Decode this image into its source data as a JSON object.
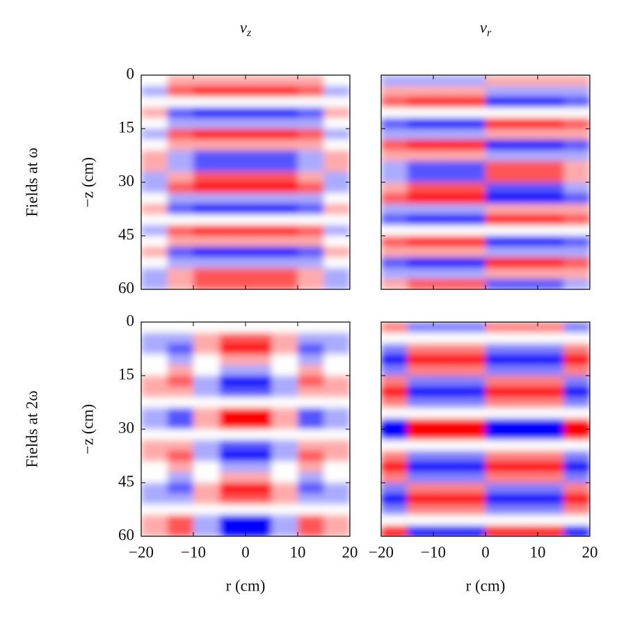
{
  "chart_data": [
    {
      "type": "heatmap",
      "title": {
        "text": "v",
        "subscript": "z"
      },
      "row_label": "Fields at ω",
      "ylabel": "−z (cm)",
      "xlim": [
        -20,
        20
      ],
      "ylim": [
        0,
        60
      ],
      "y_inverted": true,
      "xticks": [
        {
          "value": -20,
          "label": "−20"
        },
        {
          "value": -10,
          "label": "−10"
        },
        0,
        10,
        20
      ],
      "yticks": [
        0,
        15,
        30,
        45,
        60
      ],
      "xticklabels": false,
      "yticklabels": true,
      "xbins": [
        -20,
        -15,
        -10,
        -5,
        0,
        5,
        10,
        15,
        20
      ],
      "ybins": [
        0,
        3,
        6,
        9,
        12,
        15,
        18,
        21,
        24,
        27,
        30,
        33,
        36,
        39,
        42,
        45,
        48,
        51,
        54,
        57,
        60
      ],
      "z": [
        [
          0,
          1,
          1,
          1,
          1,
          1,
          1,
          0
        ],
        [
          -1,
          2,
          3,
          3,
          3,
          3,
          2,
          -1
        ],
        [
          0,
          0,
          0,
          0,
          0,
          0,
          0,
          0
        ],
        [
          1,
          -2,
          -3,
          -3,
          -3,
          -3,
          -2,
          1
        ],
        [
          0,
          -1,
          -1,
          -1,
          -1,
          -1,
          -1,
          0
        ],
        [
          -1,
          2,
          3,
          3,
          3,
          3,
          2,
          -1
        ],
        [
          0,
          1,
          1,
          1,
          1,
          1,
          1,
          0
        ],
        [
          1,
          -1,
          -2,
          -2,
          -2,
          -2,
          -1,
          1
        ],
        [
          1,
          -1,
          -2,
          -2,
          -2,
          -2,
          -1,
          1
        ],
        [
          -1,
          1,
          2,
          2,
          2,
          2,
          1,
          -1
        ],
        [
          -1,
          2,
          3,
          3,
          3,
          3,
          2,
          -1
        ],
        [
          0,
          -1,
          -1,
          -1,
          -1,
          -1,
          -1,
          0
        ],
        [
          1,
          -2,
          -3,
          -3,
          -3,
          -3,
          -2,
          1
        ],
        [
          0,
          0,
          0,
          0,
          0,
          0,
          0,
          0
        ],
        [
          -1,
          2,
          3,
          3,
          3,
          3,
          2,
          -1
        ],
        [
          0,
          1,
          1,
          1,
          1,
          1,
          1,
          0
        ],
        [
          1,
          -2,
          -3,
          -3,
          -3,
          -3,
          -2,
          1
        ],
        [
          0,
          -1,
          -1,
          -1,
          -1,
          -1,
          -1,
          0
        ],
        [
          -1,
          1,
          2,
          2,
          2,
          2,
          1,
          -1
        ],
        [
          -1,
          1,
          2,
          2,
          2,
          2,
          1,
          -1
        ]
      ]
    },
    {
      "type": "heatmap",
      "title": {
        "text": "v",
        "subscript": "r"
      },
      "xlim": [
        -20,
        20
      ],
      "ylim": [
        0,
        60
      ],
      "y_inverted": true,
      "xticks": [
        {
          "value": -20,
          "label": "−20"
        },
        {
          "value": -10,
          "label": "−10"
        },
        0,
        10,
        20
      ],
      "yticks": [
        0,
        15,
        30,
        45,
        60
      ],
      "xticklabels": false,
      "yticklabels": false,
      "xbins": [
        -20,
        -15,
        -10,
        -5,
        0,
        5,
        10,
        15,
        20
      ],
      "ybins": [
        0,
        3,
        6,
        9,
        12,
        15,
        18,
        21,
        24,
        27,
        30,
        33,
        36,
        39,
        42,
        45,
        48,
        51,
        54,
        57,
        60
      ],
      "z": [
        [
          -1,
          -1,
          -1,
          -1,
          1,
          1,
          1,
          1
        ],
        [
          1,
          1,
          1,
          1,
          -1,
          -1,
          -1,
          -1
        ],
        [
          2,
          3,
          3,
          3,
          -3,
          -3,
          -3,
          -2
        ],
        [
          0,
          0,
          0,
          0,
          0,
          0,
          0,
          0
        ],
        [
          -2,
          -3,
          -3,
          -3,
          3,
          3,
          3,
          2
        ],
        [
          -1,
          -1,
          -1,
          -1,
          1,
          1,
          1,
          1
        ],
        [
          2,
          3,
          3,
          3,
          -3,
          -3,
          -3,
          -2
        ],
        [
          1,
          1,
          1,
          1,
          -1,
          -1,
          -1,
          -1
        ],
        [
          -1,
          -2,
          -2,
          -2,
          2,
          2,
          2,
          1
        ],
        [
          -1,
          -2,
          -2,
          -2,
          2,
          2,
          2,
          1
        ],
        [
          1,
          2,
          2,
          2,
          -2,
          -2,
          -2,
          -1
        ],
        [
          2,
          3,
          3,
          3,
          -3,
          -3,
          -3,
          -2
        ],
        [
          -1,
          -1,
          -1,
          -1,
          1,
          1,
          1,
          1
        ],
        [
          -2,
          -3,
          -3,
          -3,
          3,
          3,
          3,
          2
        ],
        [
          0,
          0,
          0,
          0,
          0,
          0,
          0,
          0
        ],
        [
          2,
          3,
          3,
          3,
          -3,
          -3,
          -3,
          -2
        ],
        [
          1,
          1,
          1,
          1,
          -1,
          -1,
          -1,
          -1
        ],
        [
          -2,
          -3,
          -3,
          -3,
          3,
          3,
          3,
          2
        ],
        [
          -1,
          -1,
          -1,
          -1,
          1,
          1,
          1,
          1
        ],
        [
          1,
          2,
          2,
          2,
          -2,
          -2,
          -2,
          -1
        ]
      ]
    },
    {
      "type": "heatmap",
      "row_label": "Fields at 2ω",
      "ylabel": "−z (cm)",
      "xlabel": "r (cm)",
      "xlim": [
        -20,
        20
      ],
      "ylim": [
        0,
        60
      ],
      "y_inverted": true,
      "xticks": [
        {
          "value": -20,
          "label": "−20"
        },
        {
          "value": -10,
          "label": "−10"
        },
        0,
        10,
        20
      ],
      "yticks": [
        0,
        15,
        30,
        45,
        60
      ],
      "xticklabels": true,
      "yticklabels": true,
      "xbins": [
        -20,
        -15,
        -10,
        -5,
        0,
        5,
        10,
        15,
        20
      ],
      "ybins": [
        0,
        3,
        6,
        9,
        12,
        15,
        18,
        21,
        24,
        27,
        30,
        33,
        36,
        39,
        42,
        45,
        48,
        51,
        54,
        57,
        60
      ],
      "z": [
        [
          0,
          0,
          0,
          0,
          0,
          0,
          0,
          0
        ],
        [
          -1,
          -1,
          1,
          2,
          2,
          1,
          -1,
          -1
        ],
        [
          -1,
          -2,
          1,
          3,
          3,
          1,
          -2,
          -1
        ],
        [
          0,
          -1,
          0,
          1,
          1,
          0,
          -1,
          0
        ],
        [
          0,
          1,
          0,
          -1,
          -1,
          0,
          1,
          0
        ],
        [
          1,
          2,
          -1,
          -3,
          -3,
          -1,
          2,
          1
        ],
        [
          1,
          1,
          -1,
          -2,
          -2,
          -1,
          1,
          1
        ],
        [
          0,
          0,
          0,
          0,
          0,
          0,
          0,
          0
        ],
        [
          -1,
          -2,
          1,
          3,
          3,
          1,
          -2,
          -1
        ],
        [
          -1,
          -2,
          1,
          3,
          3,
          1,
          -2,
          -1
        ],
        [
          0,
          0,
          0,
          0,
          0,
          0,
          0,
          0
        ],
        [
          1,
          1,
          -1,
          -2,
          -2,
          -1,
          1,
          1
        ],
        [
          1,
          2,
          -1,
          -3,
          -3,
          -1,
          2,
          1
        ],
        [
          0,
          1,
          0,
          -1,
          -1,
          0,
          1,
          0
        ],
        [
          0,
          -1,
          0,
          1,
          1,
          0,
          -1,
          0
        ],
        [
          -1,
          -2,
          1,
          3,
          3,
          1,
          -2,
          -1
        ],
        [
          -1,
          -1,
          1,
          2,
          2,
          1,
          -1,
          -1
        ],
        [
          0,
          0,
          0,
          0,
          0,
          0,
          0,
          0
        ],
        [
          1,
          2,
          -1,
          -3,
          -3,
          -1,
          2,
          1
        ],
        [
          1,
          2,
          -1,
          -3,
          -3,
          -1,
          2,
          1
        ]
      ]
    },
    {
      "type": "heatmap",
      "xlabel": "r (cm)",
      "xlim": [
        -20,
        20
      ],
      "ylim": [
        0,
        60
      ],
      "y_inverted": true,
      "xticks": [
        {
          "value": -20,
          "label": "−20"
        },
        {
          "value": -10,
          "label": "−10"
        },
        0,
        10,
        20
      ],
      "yticks": [
        0,
        15,
        30,
        45,
        60
      ],
      "xticklabels": true,
      "yticklabels": false,
      "xbins": [
        -20,
        -15,
        -10,
        -5,
        0,
        5,
        10,
        15,
        20
      ],
      "ybins": [
        0,
        3,
        6,
        9,
        12,
        15,
        18,
        21,
        24,
        27,
        30,
        33,
        36,
        39,
        42,
        45,
        48,
        51,
        54,
        57,
        60
      ],
      "z": [
        [
          1,
          -1,
          -1,
          -1,
          1,
          1,
          1,
          -1
        ],
        [
          0,
          0,
          0,
          0,
          0,
          0,
          0,
          0
        ],
        [
          -1,
          1,
          1,
          1,
          -1,
          -1,
          -1,
          1
        ],
        [
          -2,
          2,
          2,
          2,
          -2,
          -2,
          -2,
          2
        ],
        [
          -1,
          1,
          1,
          1,
          -1,
          -1,
          -1,
          1
        ],
        [
          1,
          -1,
          -1,
          -1,
          1,
          1,
          1,
          -1
        ],
        [
          2,
          -2,
          -2,
          -2,
          2,
          2,
          2,
          -2
        ],
        [
          1,
          -1,
          -1,
          -1,
          1,
          1,
          1,
          -1
        ],
        [
          0,
          0,
          0,
          0,
          0,
          0,
          0,
          0
        ],
        [
          -2,
          2,
          2,
          2,
          -2,
          -2,
          -2,
          2
        ],
        [
          -2,
          2,
          2,
          2,
          -2,
          -2,
          -2,
          2
        ],
        [
          0,
          0,
          0,
          0,
          0,
          0,
          0,
          0
        ],
        [
          1,
          -1,
          -1,
          -1,
          1,
          1,
          1,
          -1
        ],
        [
          2,
          -2,
          -2,
          -2,
          2,
          2,
          2,
          -2
        ],
        [
          1,
          -1,
          -1,
          -1,
          1,
          1,
          1,
          -1
        ],
        [
          -1,
          1,
          1,
          1,
          -1,
          -1,
          -1,
          1
        ],
        [
          -2,
          2,
          2,
          2,
          -2,
          -2,
          -2,
          2
        ],
        [
          -1,
          1,
          1,
          1,
          -1,
          -1,
          -1,
          1
        ],
        [
          0,
          0,
          0,
          0,
          0,
          0,
          0,
          0
        ],
        [
          2,
          -2,
          -2,
          -2,
          2,
          2,
          2,
          -2
        ]
      ]
    }
  ]
}
